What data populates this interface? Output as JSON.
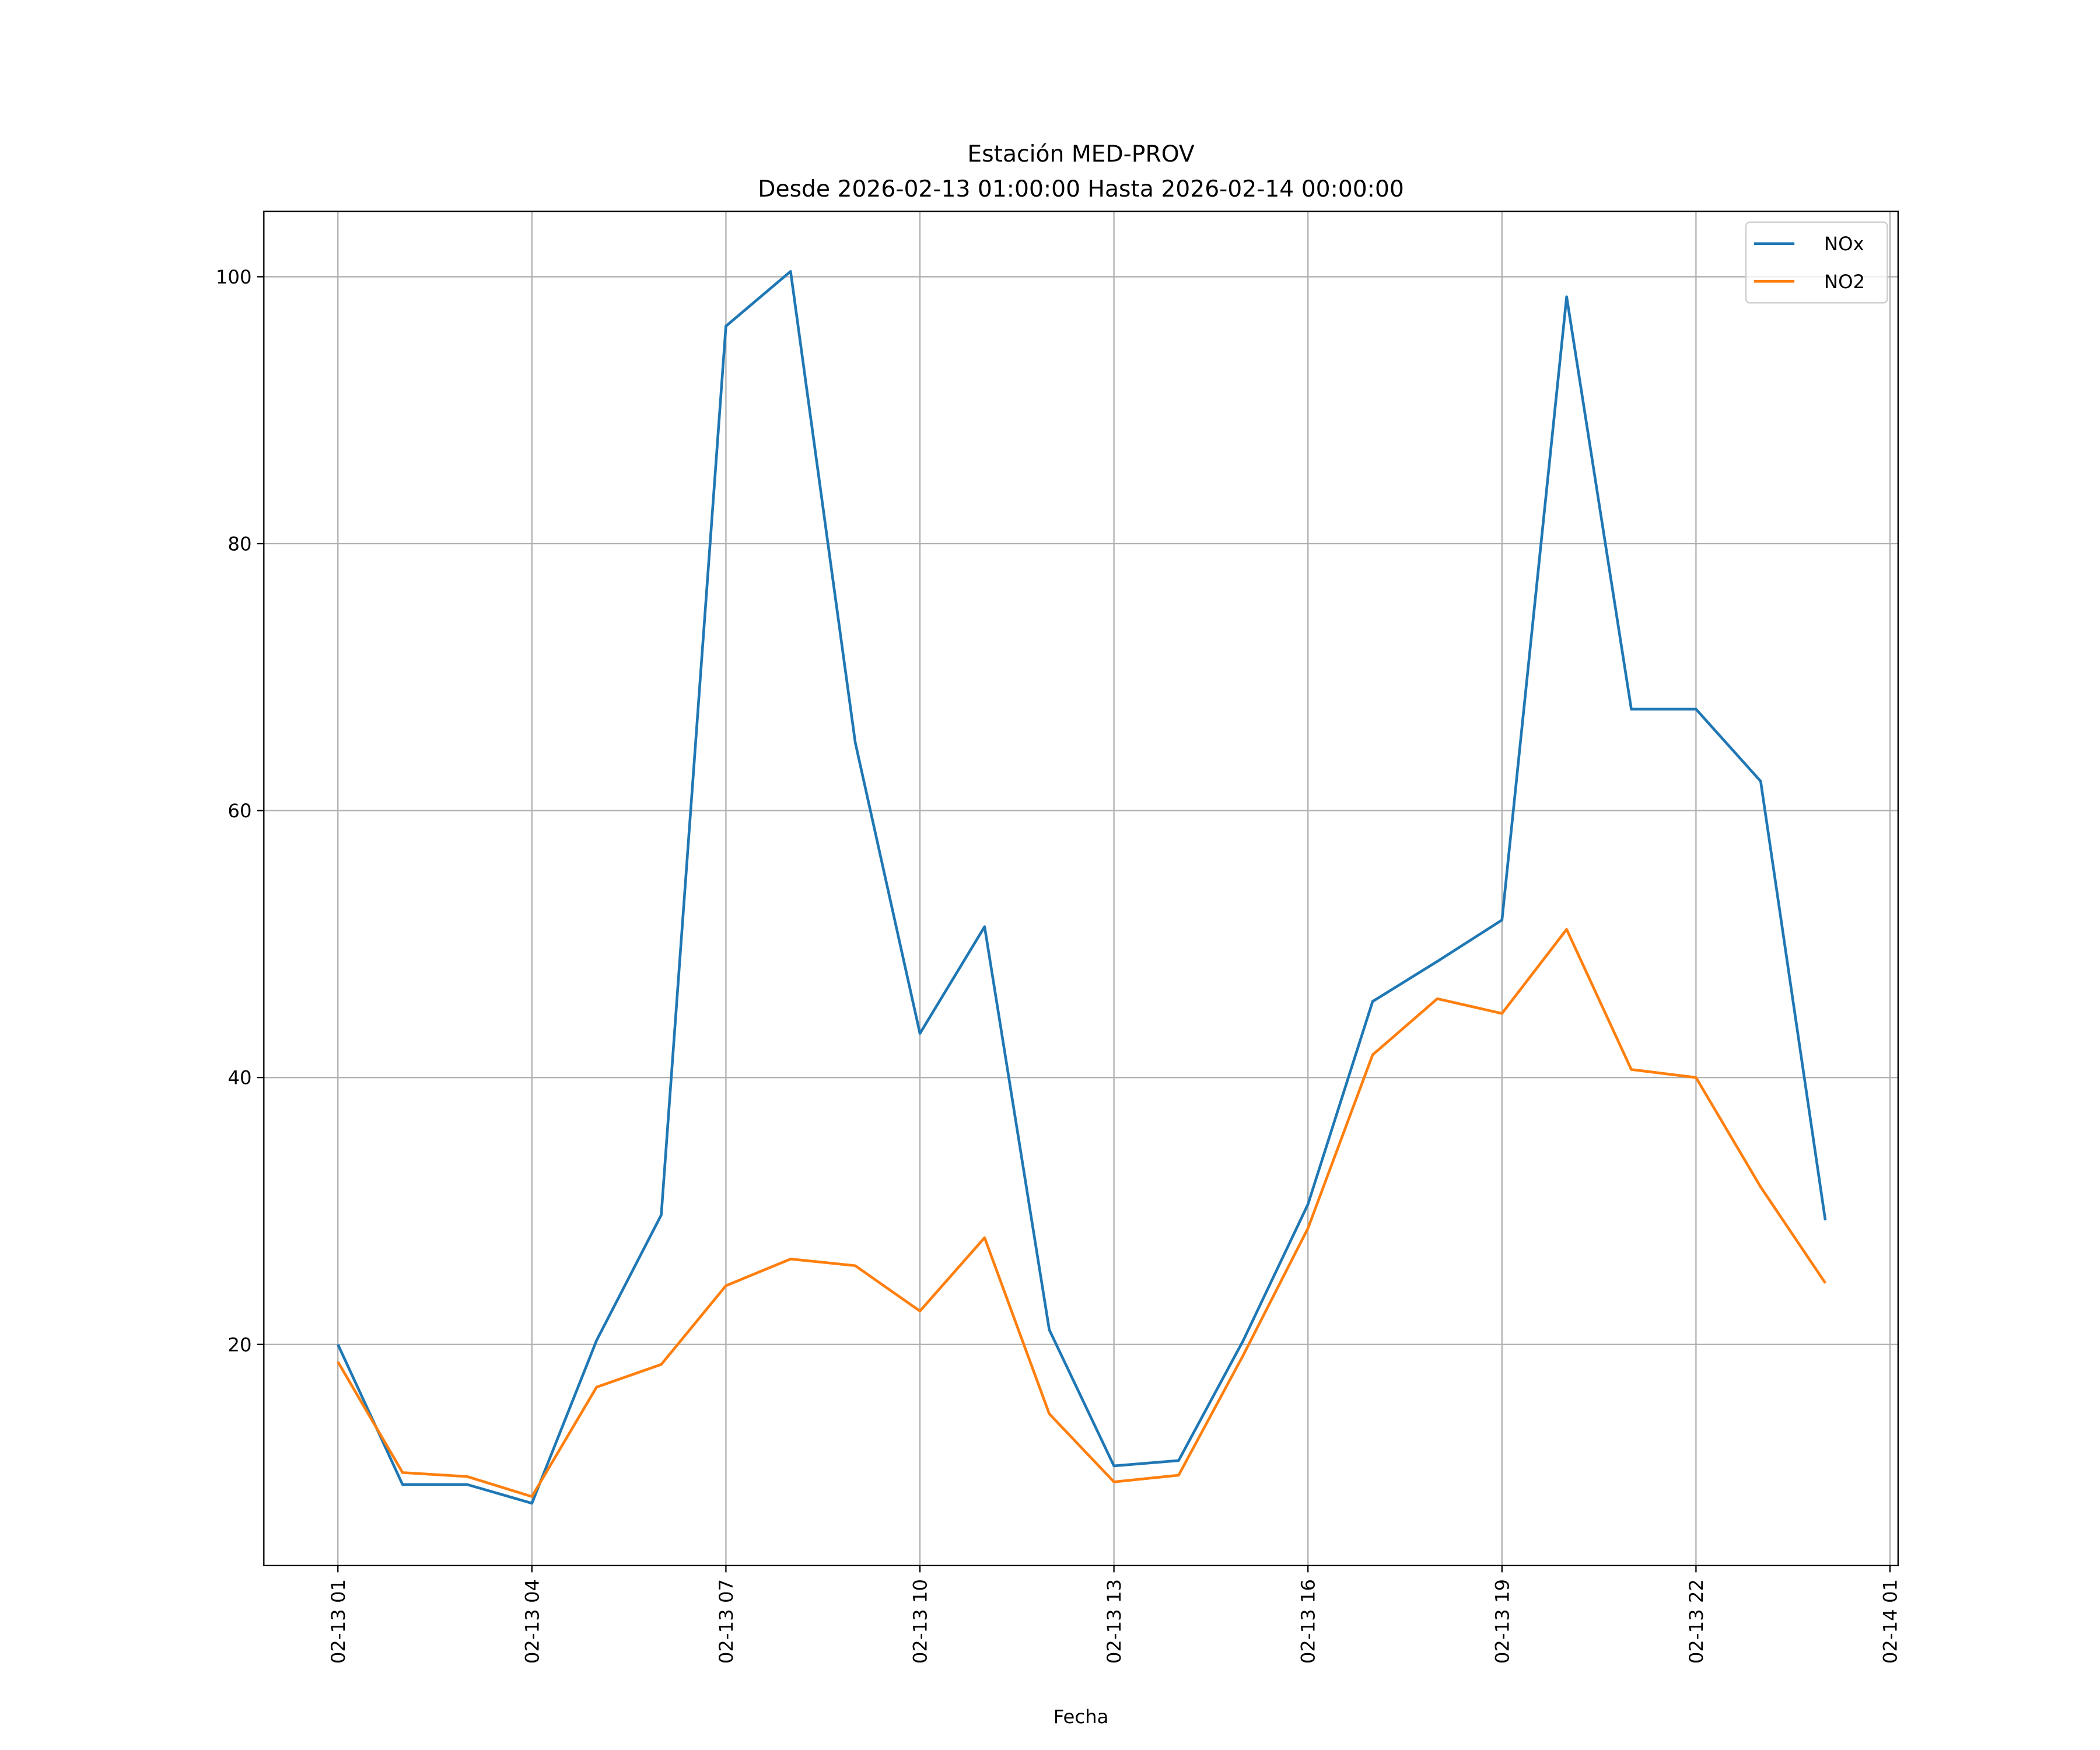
{
  "chart_data": {
    "type": "line",
    "title": "Estación MED-PROV",
    "subtitle": "Desde 2026-02-13 01:00:00 Hasta 2026-02-14 00:00:00",
    "xlabel": "Fecha",
    "ylabel": "",
    "x": [
      "02-13 01:00",
      "02-13 02:00",
      "02-13 03:00",
      "02-13 04:00",
      "02-13 05:00",
      "02-13 06:00",
      "02-13 07:00",
      "02-13 08:00",
      "02-13 09:00",
      "02-13 10:00",
      "02-13 11:00",
      "02-13 12:00",
      "02-13 13:00",
      "02-13 14:00",
      "02-13 15:00",
      "02-13 16:00",
      "02-13 17:00",
      "02-13 18:00",
      "02-13 19:00",
      "02-13 20:00",
      "02-13 21:00",
      "02-13 22:00",
      "02-13 23:00",
      "02-14 00:00"
    ],
    "x_hours": [
      0,
      1,
      2,
      3,
      4,
      5,
      6,
      7,
      8,
      9,
      10,
      11,
      12,
      13,
      14,
      15,
      16,
      17,
      18,
      19,
      20,
      21,
      22,
      23
    ],
    "series": [
      {
        "name": "NOx",
        "color": "#1f77b4",
        "values": [
          20.0,
          9.5,
          9.5,
          8.1,
          20.3,
          29.7,
          96.3,
          100.4,
          65.1,
          43.3,
          51.3,
          21.1,
          10.9,
          11.3,
          20.3,
          30.5,
          45.7,
          48.7,
          51.8,
          98.5,
          67.6,
          67.6,
          62.2,
          29.3
        ]
      },
      {
        "name": "NO2",
        "color": "#ff7f0e",
        "values": [
          18.7,
          10.4,
          10.1,
          8.6,
          16.8,
          18.5,
          24.4,
          26.4,
          25.9,
          22.5,
          28.0,
          14.8,
          9.7,
          10.2,
          19.2,
          28.7,
          41.7,
          45.9,
          44.8,
          51.1,
          40.6,
          40.0,
          31.8,
          24.6
        ]
      }
    ],
    "xticks": [
      {
        "hour": 0,
        "label": "02-13 01"
      },
      {
        "hour": 3,
        "label": "02-13 04"
      },
      {
        "hour": 6,
        "label": "02-13 07"
      },
      {
        "hour": 9,
        "label": "02-13 10"
      },
      {
        "hour": 12,
        "label": "02-13 13"
      },
      {
        "hour": 15,
        "label": "02-13 16"
      },
      {
        "hour": 18,
        "label": "02-13 19"
      },
      {
        "hour": 21,
        "label": "02-13 22"
      },
      {
        "hour": 24,
        "label": "02-14 01"
      }
    ],
    "yticks": [
      {
        "value": 20,
        "label": "20"
      },
      {
        "value": 40,
        "label": "40"
      },
      {
        "value": 60,
        "label": "60"
      },
      {
        "value": 80,
        "label": "80"
      },
      {
        "value": 100,
        "label": "100"
      }
    ],
    "xlim": [
      -1.145,
      24.125
    ],
    "ylim": [
      3.43,
      104.9
    ],
    "grid": true,
    "legend": "top-right"
  }
}
